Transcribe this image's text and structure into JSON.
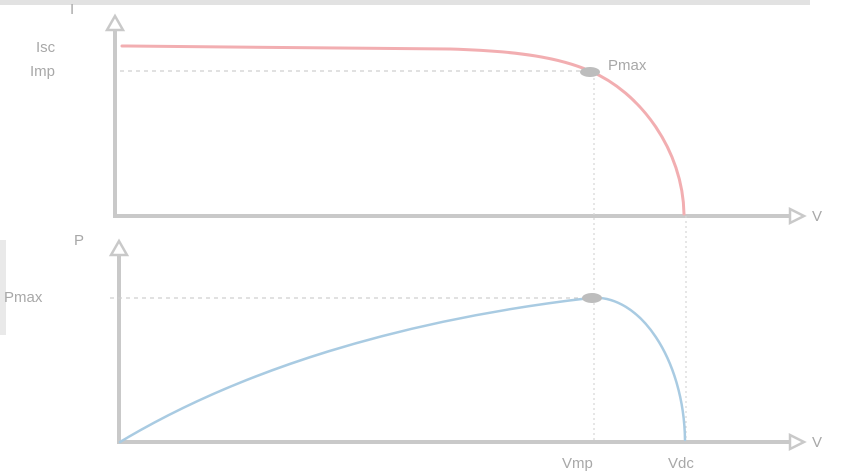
{
  "iv_plot": {
    "y_axis_label": "I",
    "x_axis_label": "V",
    "isc_label": "Isc",
    "imp_label": "Imp",
    "pmax_label": "Pmax"
  },
  "pv_plot": {
    "y_axis_label": "P",
    "x_axis_label": "V",
    "pmax_label": "Pmax",
    "vmp_label": "Vmp",
    "voc_label": "Vdc"
  },
  "colors": {
    "iv_curve": "#f2aeb1",
    "pv_curve": "#a9cbe2",
    "marker": "#bdbdbd",
    "axis": "#c9c9c9",
    "text": "#a8a8a8"
  }
}
